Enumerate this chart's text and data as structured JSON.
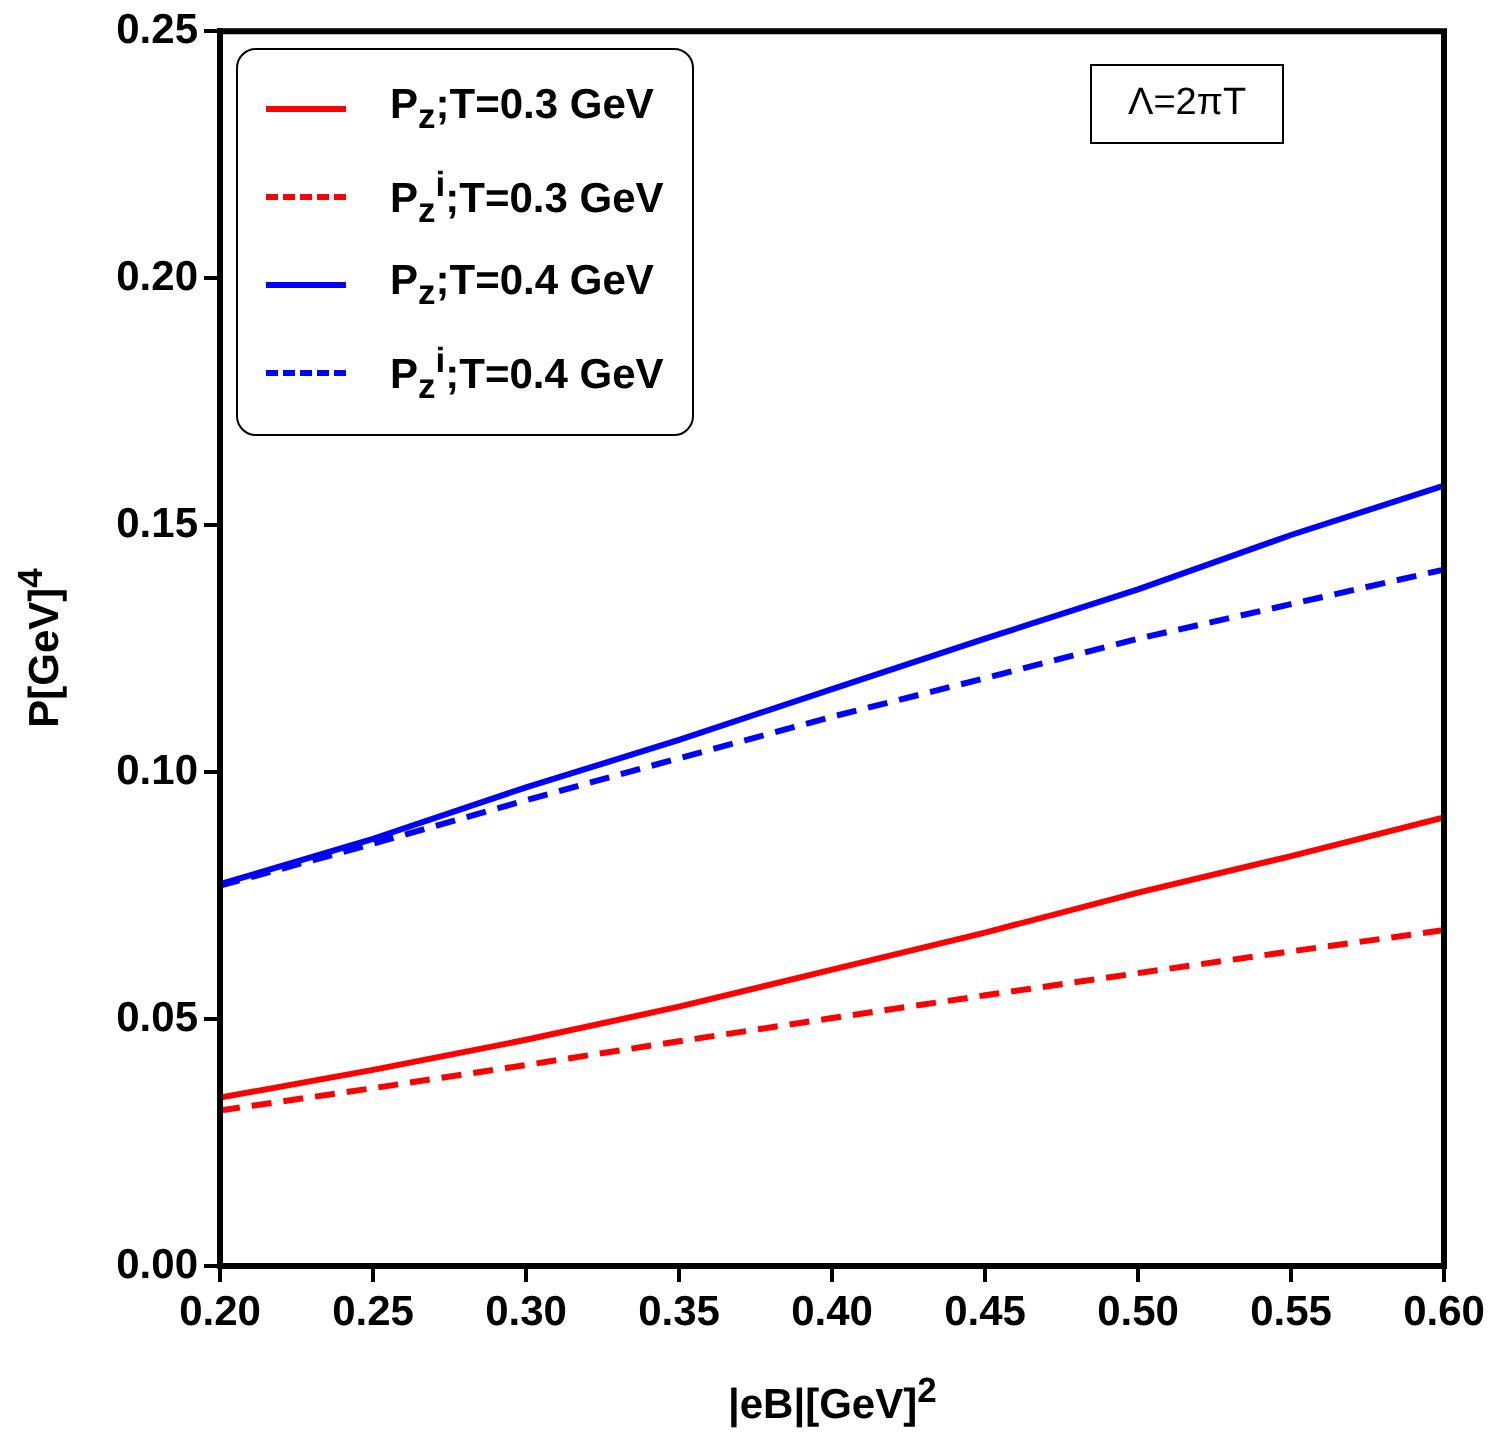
{
  "chart_data": {
    "type": "line",
    "xlabel": "|eB|[GeV]$^{2}$",
    "ylabel": "P[GeV]$^{4}$",
    "x": [
      0.2,
      0.25,
      0.3,
      0.35,
      0.4,
      0.45,
      0.5,
      0.55,
      0.6
    ],
    "series": [
      {
        "name": "P$_{z}$;T=0.3 GeV",
        "color": "#ff0000",
        "line_style": "solid",
        "values": [
          0.0341,
          0.0397,
          0.0458,
          0.0525,
          0.06,
          0.0675,
          0.0756,
          0.083,
          0.0908
        ]
      },
      {
        "name": "P$_{z}$$^{i}$;T=0.3 GeV",
        "color": "#ff0000",
        "line_style": "dashed",
        "values": [
          0.0315,
          0.036,
          0.0407,
          0.0455,
          0.0502,
          0.0548,
          0.0593,
          0.0637,
          0.068
        ]
      },
      {
        "name": "P$_{z}$;T=0.4 GeV",
        "color": "#0000ff",
        "line_style": "solid",
        "values": [
          0.0773,
          0.0865,
          0.0969,
          0.1065,
          0.1168,
          0.127,
          0.137,
          0.148,
          0.158
        ]
      },
      {
        "name": "P$_{z}$$^{i}$;T=0.4 GeV",
        "color": "#0000ff",
        "line_style": "dashed",
        "values": [
          0.077,
          0.0855,
          0.0943,
          0.1028,
          0.1112,
          0.119,
          0.127,
          0.134,
          0.141
        ]
      }
    ],
    "xlim": [
      0.2,
      0.6
    ],
    "xticks": [
      {
        "value": 0.2,
        "label": "0.20"
      },
      {
        "value": 0.25,
        "label": "0.25"
      },
      {
        "value": 0.3,
        "label": "0.30"
      },
      {
        "value": 0.35,
        "label": "0.35"
      },
      {
        "value": 0.4,
        "label": "0.40"
      },
      {
        "value": 0.45,
        "label": "0.45"
      },
      {
        "value": 0.5,
        "label": "0.50"
      },
      {
        "value": 0.55,
        "label": "0.55"
      },
      {
        "value": 0.6,
        "label": "0.60"
      }
    ],
    "ylim": [
      0,
      0.25
    ],
    "yticks": [
      {
        "value": 0,
        "label": "0.00"
      },
      {
        "value": 0.05,
        "label": "0.05"
      },
      {
        "value": 0.1,
        "label": "0.10"
      },
      {
        "value": 0.15,
        "label": "0.15"
      },
      {
        "value": 0.2,
        "label": "0.20"
      },
      {
        "value": 0.25,
        "label": "0.25"
      }
    ],
    "grid": false,
    "legend": "top left",
    "marker": "none",
    "annotations": [
      "Λ=2πT"
    ]
  }
}
